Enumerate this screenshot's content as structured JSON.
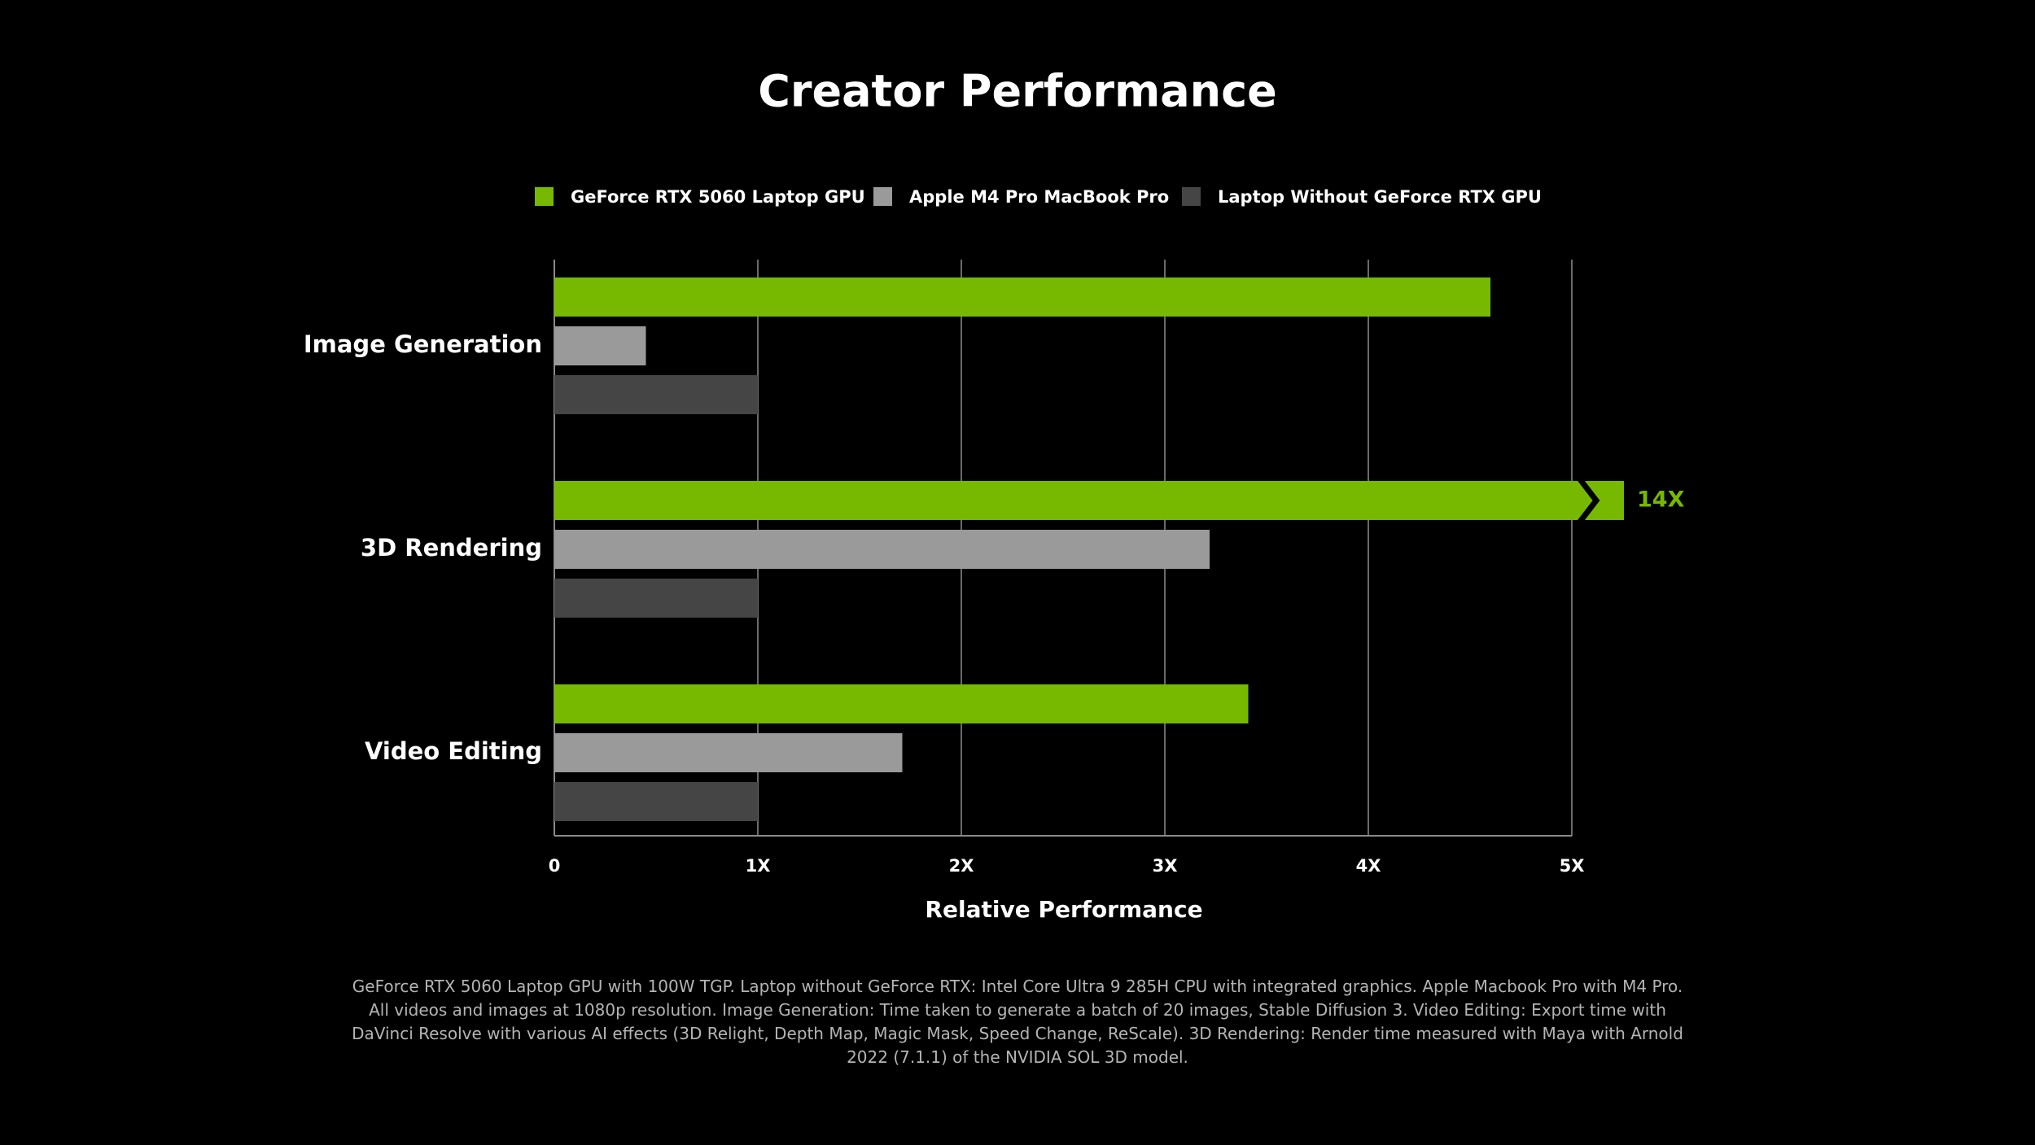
{
  "chart_data": {
    "type": "bar",
    "orientation": "horizontal",
    "title": "Creator Performance",
    "categories": [
      "Image Generation",
      "3D Rendering",
      "Video Editing"
    ],
    "series": [
      {
        "name": "GeForce RTX 5060 Laptop GPU",
        "color": "#76b900",
        "values": [
          4.6,
          14,
          3.41
        ],
        "value_labels": [
          null,
          "14X",
          null
        ]
      },
      {
        "name": "Apple M4 Pro MacBook Pro",
        "color": "#9a9a9a",
        "values": [
          0.45,
          3.22,
          1.71
        ]
      },
      {
        "name": "Laptop Without GeForce RTX GPU",
        "color": "#454545",
        "values": [
          1,
          1,
          1
        ]
      }
    ],
    "xlim": [
      0,
      5
    ],
    "xticks": [
      0,
      {
        "value": 1,
        "label": "1X"
      },
      {
        "value": 2,
        "label": "2X"
      },
      {
        "value": 3,
        "label": "3X"
      },
      {
        "value": 4,
        "label": "4X"
      },
      {
        "value": 5,
        "label": "5X"
      }
    ],
    "xlabel": "Relative Performance",
    "grid": true,
    "legend": "top",
    "footnote": "GeForce RTX 5060 Laptop GPU with 100W TGP. Laptop without GeForce RTX: Intel Core Ultra 9 285H CPU with integrated graphics. Apple Macbook Pro with M4 Pro. All videos and images at 1080p resolution. Image Generation: Time taken to generate a batch of 20 images, Stable Diffusion 3. Video Editing: Export time with DaVinci Resolve with various AI effects (3D Relight, Depth Map, Magic Mask, Speed Change, ReScale). 3D Rendering: Render time measured with Maya with Arnold 2022 (7.1.1) of the NVIDIA SOL 3D model."
  }
}
